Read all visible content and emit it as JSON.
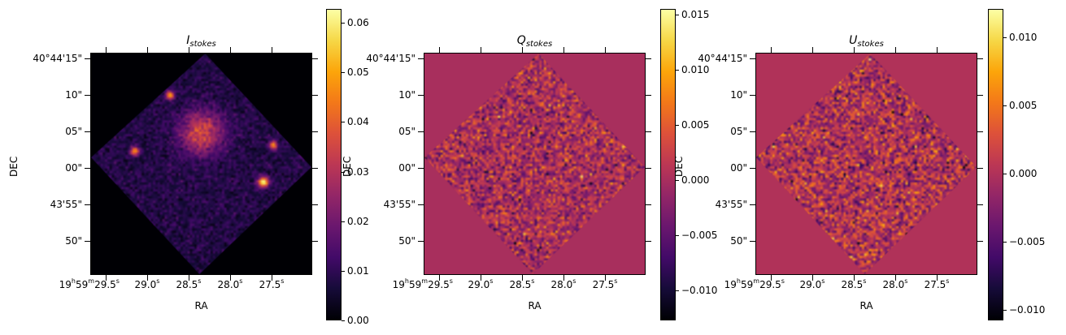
{
  "chart_data": {
    "type": "heatmap",
    "colormap": "inferno",
    "colormap_stops": [
      "#000004",
      "#160b39",
      "#420a68",
      "#6a176e",
      "#932667",
      "#bc3754",
      "#dd513a",
      "#f37819",
      "#fca50a",
      "#f6d746",
      "#fcffa4"
    ],
    "xlabel": "RA",
    "ylabel": "DEC",
    "ra_range_sec": [
      29.686,
      27.01
    ],
    "dec_range_arcsec": [
      15.78,
      -14.67
    ],
    "ra_ticks": [
      {
        "value": 29.5,
        "parts": [
          [
            "19",
            "h"
          ],
          [
            "59",
            "m"
          ],
          [
            "29.5",
            "s"
          ]
        ]
      },
      {
        "value": 29.0,
        "parts": [
          [
            "29.0",
            "s"
          ]
        ]
      },
      {
        "value": 28.5,
        "parts": [
          [
            "28.5",
            "s"
          ]
        ]
      },
      {
        "value": 28.0,
        "parts": [
          [
            "28.0",
            "s"
          ]
        ]
      },
      {
        "value": 27.5,
        "parts": [
          [
            "27.5",
            "s"
          ]
        ]
      }
    ],
    "dec_ticks": [
      {
        "value": 15,
        "label": "40°44'15\""
      },
      {
        "value": 10,
        "label": "10\""
      },
      {
        "value": 5,
        "label": "05\""
      },
      {
        "value": 0,
        "label": "00\""
      },
      {
        "value": -5,
        "label": "43'55\""
      },
      {
        "value": -10,
        "label": "50\""
      }
    ],
    "footprint": [
      [
        28.3,
        15.78
      ],
      [
        27.01,
        0.11
      ],
      [
        28.37,
        -14.67
      ],
      [
        29.686,
        1.45
      ]
    ],
    "panels": [
      {
        "title_main": "I",
        "title_sub": "stokes",
        "vmin": 0.0,
        "vmax": 0.0628,
        "fill_value": 0.0,
        "outside_value": 0.0,
        "background_level": 0.008,
        "noise": 0.003,
        "cbar_ticks": [
          {
            "value": 0.0,
            "label": "0.00"
          },
          {
            "value": 0.01,
            "label": "0.01"
          },
          {
            "value": 0.02,
            "label": "0.02"
          },
          {
            "value": 0.03,
            "label": "0.03"
          },
          {
            "value": 0.04,
            "label": "0.04"
          },
          {
            "value": 0.05,
            "label": "0.05"
          },
          {
            "value": 0.06,
            "label": "0.06"
          }
        ],
        "sources": [
          {
            "ra": 28.36,
            "dec": 5.0,
            "value": 0.035,
            "extent": 2.0
          },
          {
            "ra": 28.74,
            "dec": 10.2,
            "value": 0.045,
            "extent": 0.4
          },
          {
            "ra": 29.17,
            "dec": 2.45,
            "value": 0.045,
            "extent": 0.4
          },
          {
            "ra": 27.49,
            "dec": 3.3,
            "value": 0.04,
            "extent": 0.4
          },
          {
            "ra": 27.61,
            "dec": -1.8,
            "value": 0.055,
            "extent": 0.5
          }
        ]
      },
      {
        "title_main": "Q",
        "title_sub": "stokes",
        "vmin": -0.0127,
        "vmax": 0.0155,
        "fill_value": 0.0,
        "outside_value": 0.0,
        "background_level": 0.0,
        "noise": 0.0035,
        "cbar_ticks": [
          {
            "value": -0.01,
            "label": "−0.010"
          },
          {
            "value": -0.005,
            "label": "−0.005"
          },
          {
            "value": 0.0,
            "label": "0.000"
          },
          {
            "value": 0.005,
            "label": "0.005"
          },
          {
            "value": 0.01,
            "label": "0.010"
          },
          {
            "value": 0.015,
            "label": "0.015"
          }
        ],
        "sources": []
      },
      {
        "title_main": "U",
        "title_sub": "stokes",
        "vmin": -0.0108,
        "vmax": 0.0121,
        "fill_value": 0.0,
        "outside_value": 0.0,
        "background_level": 0.0,
        "noise": 0.0032,
        "cbar_ticks": [
          {
            "value": -0.01,
            "label": "−0.010"
          },
          {
            "value": -0.005,
            "label": "−0.005"
          },
          {
            "value": 0.0,
            "label": "0.000"
          },
          {
            "value": 0.005,
            "label": "0.005"
          },
          {
            "value": 0.01,
            "label": "0.010"
          }
        ],
        "sources": []
      }
    ]
  }
}
